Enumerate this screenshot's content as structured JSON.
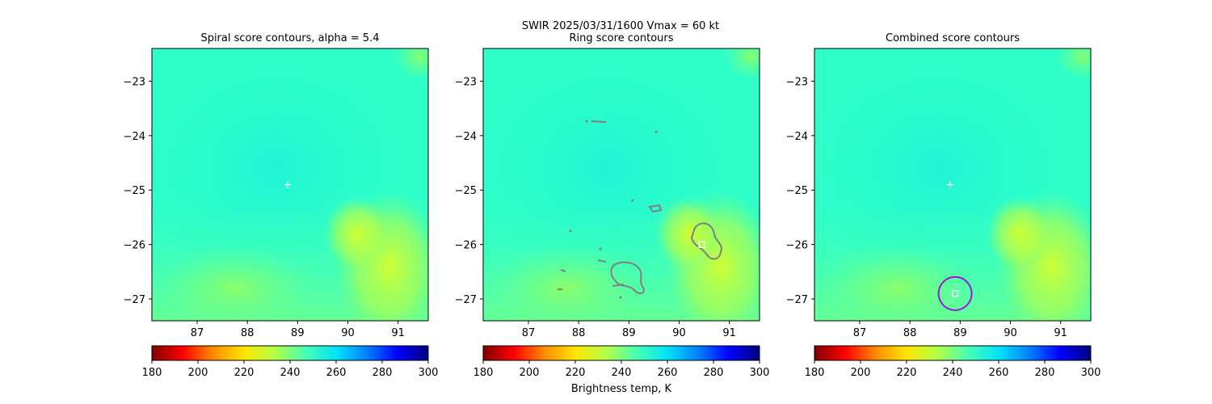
{
  "figure": {
    "suptitle_line1": "SWIR  2025/03/31/1600    Vmax = 60 kt"
  },
  "colorbar": {
    "cmap_stops": [
      "#800000",
      "#ff0000",
      "#ff8c00",
      "#ffe600",
      "#b4ff47",
      "#47ffb4",
      "#00e4f8",
      "#0080ff",
      "#0000ff",
      "#00007f"
    ],
    "vmin": 180,
    "vmax": 300,
    "ticks": [
      180,
      200,
      220,
      240,
      260,
      280,
      300
    ],
    "label": "Brightness temp, K"
  },
  "chart_data": [
    {
      "type": "heatmap",
      "title": "Spiral score contours, alpha =  5.4",
      "xlim": [
        86.1,
        91.6
      ],
      "ylim": [
        -27.4,
        -22.4
      ],
      "xticks": [
        87,
        88,
        89,
        90,
        91
      ],
      "yticks": [
        -23,
        -24,
        -25,
        -26,
        -27
      ],
      "marker": {
        "shape": "plus",
        "x": 88.8,
        "y": -24.9,
        "color": "#ffffff"
      }
    },
    {
      "type": "heatmap",
      "title": "Ring score contours",
      "xlim": [
        86.1,
        91.6
      ],
      "ylim": [
        -27.4,
        -22.4
      ],
      "xticks": [
        87,
        88,
        89,
        90,
        91
      ],
      "yticks": [
        -23,
        -24,
        -25,
        -26,
        -27
      ],
      "contour_color": "#808080",
      "marker": {
        "shape": "square",
        "x": 90.45,
        "y": -26.0,
        "color": "#ffffff"
      }
    },
    {
      "type": "heatmap",
      "title": "Combined score contours",
      "xlim": [
        86.1,
        91.6
      ],
      "ylim": [
        -27.4,
        -22.4
      ],
      "xticks": [
        87,
        88,
        89,
        90,
        91
      ],
      "yticks": [
        -23,
        -24,
        -25,
        -26,
        -27
      ],
      "marker_plus": {
        "shape": "plus",
        "x": 88.8,
        "y": -24.9,
        "color": "#ffffff"
      },
      "marker": {
        "shape": "square",
        "x": 88.9,
        "y": -26.9,
        "color": "#ffffff"
      },
      "ring": {
        "x": 88.9,
        "y": -26.9,
        "radius_deg": 0.33,
        "color": "#9b16d6"
      }
    }
  ]
}
